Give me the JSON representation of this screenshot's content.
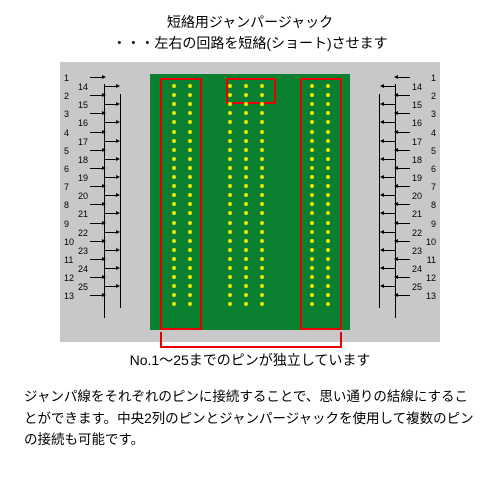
{
  "title": {
    "line1": "短絡用ジャンパージャック",
    "line2": "・・・左右の回路を短絡(ショート)させます"
  },
  "pcb": {
    "bg_color": "#0a8030",
    "dot_color": "#e8e800",
    "gray_bg": "#c8c8c8",
    "red": "#e60000",
    "columns": [
      112,
      128,
      168,
      184,
      200,
      250,
      266
    ],
    "rows": 25,
    "row_height": 9.1,
    "row_start": 22,
    "jumper_cols": [
      174,
      196
    ],
    "jumper_rows": 1
  },
  "pins": {
    "outer_start": 1,
    "outer_end": 13,
    "inner_start": 14,
    "inner_end": 25
  },
  "bottom_label": "No.1〜25までのピンが独立しています",
  "description": "ジャンパ線をそれぞれのピンに接続することで、思い通りの結線にすることができます。中央2列のピンとジャンパージャックを使用して複数のピンの接続も可能です。"
}
